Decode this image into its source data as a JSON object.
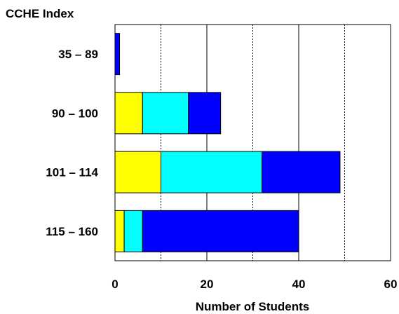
{
  "chart_data": {
    "type": "bar",
    "orientation": "horizontal",
    "stacked": true,
    "title": "CCHE Index",
    "xlabel": "Number of Students",
    "ylabel": "",
    "categories": [
      "35 – 89",
      "90 – 100",
      "101 – 114",
      "115 – 160"
    ],
    "series": [
      {
        "color": "#ffff00",
        "values": [
          0,
          6,
          10,
          2
        ]
      },
      {
        "color": "#00ffff",
        "values": [
          0,
          10,
          22,
          4
        ]
      },
      {
        "color": "#0000ff",
        "values": [
          1,
          7,
          17,
          34
        ]
      }
    ],
    "xlim": [
      0,
      60
    ],
    "xticks": [
      0,
      20,
      40,
      60
    ],
    "major_gridlines": [
      20,
      40
    ],
    "minor_gridlines": [
      10,
      30,
      50
    ],
    "legend": "none"
  }
}
